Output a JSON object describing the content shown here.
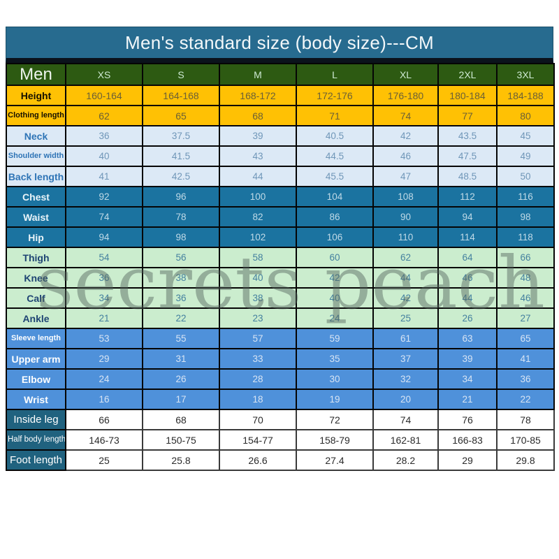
{
  "title": "Men's standard size (body size)---CM",
  "watermark": "secrets peach",
  "colors": {
    "title_bar": "#276B8F",
    "header_green": "#2D5A12",
    "gold": "#FFC104",
    "light_blue": "#DCE9F6",
    "teal": "#1B73A0",
    "light_green": "#CBEDCE",
    "blue": "#4F91DA",
    "dark_teal_label": "#20627F",
    "border": "#050505"
  },
  "chart_data": {
    "type": "table",
    "title": "Men's standard size (body size)---CM",
    "corner_label": "Men",
    "unit": "CM",
    "columns": [
      "XS",
      "S",
      "M",
      "L",
      "XL",
      "2XL",
      "3XL"
    ],
    "rows": [
      {
        "label": "Height",
        "group": "gold",
        "values": [
          "160-164",
          "164-168",
          "168-172",
          "172-176",
          "176-180",
          "180-184",
          "184-188"
        ]
      },
      {
        "label": "Clothing length",
        "group": "gold",
        "values": [
          "62",
          "65",
          "68",
          "71",
          "74",
          "77",
          "80"
        ]
      },
      {
        "label": "Neck",
        "group": "lightblue",
        "values": [
          "36",
          "37.5",
          "39",
          "40.5",
          "42",
          "43.5",
          "45"
        ]
      },
      {
        "label": "Shoulder width",
        "group": "lightblue",
        "values": [
          "40",
          "41.5",
          "43",
          "44.5",
          "46",
          "47.5",
          "49"
        ]
      },
      {
        "label": "Back length",
        "group": "lightblue",
        "values": [
          "41",
          "42.5",
          "44",
          "45.5",
          "47",
          "48.5",
          "50"
        ]
      },
      {
        "label": "Chest",
        "group": "teal",
        "values": [
          "92",
          "96",
          "100",
          "104",
          "108",
          "112",
          "116"
        ]
      },
      {
        "label": "Waist",
        "group": "teal",
        "values": [
          "74",
          "78",
          "82",
          "86",
          "90",
          "94",
          "98"
        ]
      },
      {
        "label": "Hip",
        "group": "teal",
        "values": [
          "94",
          "98",
          "102",
          "106",
          "110",
          "114",
          "118"
        ]
      },
      {
        "label": "Thigh",
        "group": "green",
        "values": [
          "54",
          "56",
          "58",
          "60",
          "62",
          "64",
          "66"
        ]
      },
      {
        "label": "Knee",
        "group": "green",
        "values": [
          "36",
          "38",
          "40",
          "42",
          "44",
          "46",
          "48"
        ]
      },
      {
        "label": "Calf",
        "group": "green",
        "values": [
          "34",
          "36",
          "38",
          "40",
          "42",
          "44",
          "46"
        ]
      },
      {
        "label": "Ankle",
        "group": "green",
        "values": [
          "21",
          "22",
          "23",
          "24",
          "25",
          "26",
          "27"
        ]
      },
      {
        "label": "Sleeve length",
        "group": "blue",
        "values": [
          "53",
          "55",
          "57",
          "59",
          "61",
          "63",
          "65"
        ]
      },
      {
        "label": "Upper arm",
        "group": "blue",
        "values": [
          "29",
          "31",
          "33",
          "35",
          "37",
          "39",
          "41"
        ]
      },
      {
        "label": "Elbow",
        "group": "blue",
        "values": [
          "24",
          "26",
          "28",
          "30",
          "32",
          "34",
          "36"
        ]
      },
      {
        "label": "Wrist",
        "group": "blue",
        "values": [
          "16",
          "17",
          "18",
          "19",
          "20",
          "21",
          "22"
        ]
      },
      {
        "label": "Inside leg",
        "group": "plain",
        "values": [
          "66",
          "68",
          "70",
          "72",
          "74",
          "76",
          "78"
        ]
      },
      {
        "label": "Half body length",
        "group": "plain",
        "values": [
          "146-73",
          "150-75",
          "154-77",
          "158-79",
          "162-81",
          "166-83",
          "170-85"
        ]
      },
      {
        "label": "Foot length",
        "group": "plain",
        "values": [
          "25",
          "25.8",
          "26.6",
          "27.4",
          "28.2",
          "29",
          "29.8"
        ]
      }
    ]
  }
}
